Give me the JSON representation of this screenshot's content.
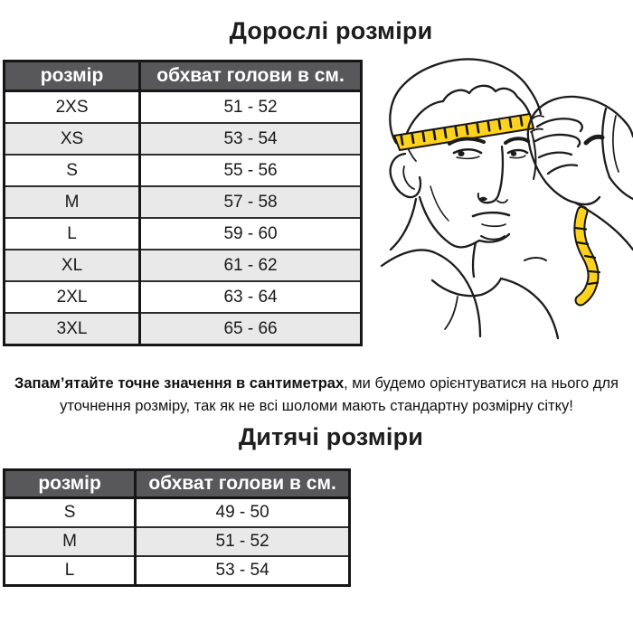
{
  "adult_section": {
    "title": "Дорослі розміри",
    "table": {
      "headers": [
        "розмір",
        "обхват голови в см."
      ],
      "rows": [
        [
          "2XS",
          "51 - 52"
        ],
        [
          "XS",
          "53 - 54"
        ],
        [
          "S",
          "55 - 56"
        ],
        [
          "M",
          "57 - 58"
        ],
        [
          "L",
          "59 - 60"
        ],
        [
          "XL",
          "61 - 62"
        ],
        [
          "2XL",
          "63 - 64"
        ],
        [
          "3XL",
          "65 - 66"
        ]
      ]
    }
  },
  "note": {
    "bold": "Запам’ятайте точне значення в сантиметрах",
    "rest": ", ми будемо орієнтуватися на нього для уточнення розміру, так як не всі шоломи мають стандартну розмірну сітку!"
  },
  "kids_section": {
    "title": "Дитячі розміри",
    "table": {
      "headers": [
        "розмір",
        "обхват голови в см."
      ],
      "rows": [
        [
          "S",
          "49 - 50"
        ],
        [
          "M",
          "51 - 52"
        ],
        [
          "L",
          "53 - 54"
        ]
      ]
    }
  },
  "illustration": {
    "description": "Чоловік вимірює обхват голови сантиметровою стрічкою",
    "tape_color": "#FFD21E"
  },
  "colors": {
    "header_bg": "#58585A",
    "row_alt_bg": "#E9E9EA",
    "border": "#161616",
    "text": "#1C1C1C"
  }
}
